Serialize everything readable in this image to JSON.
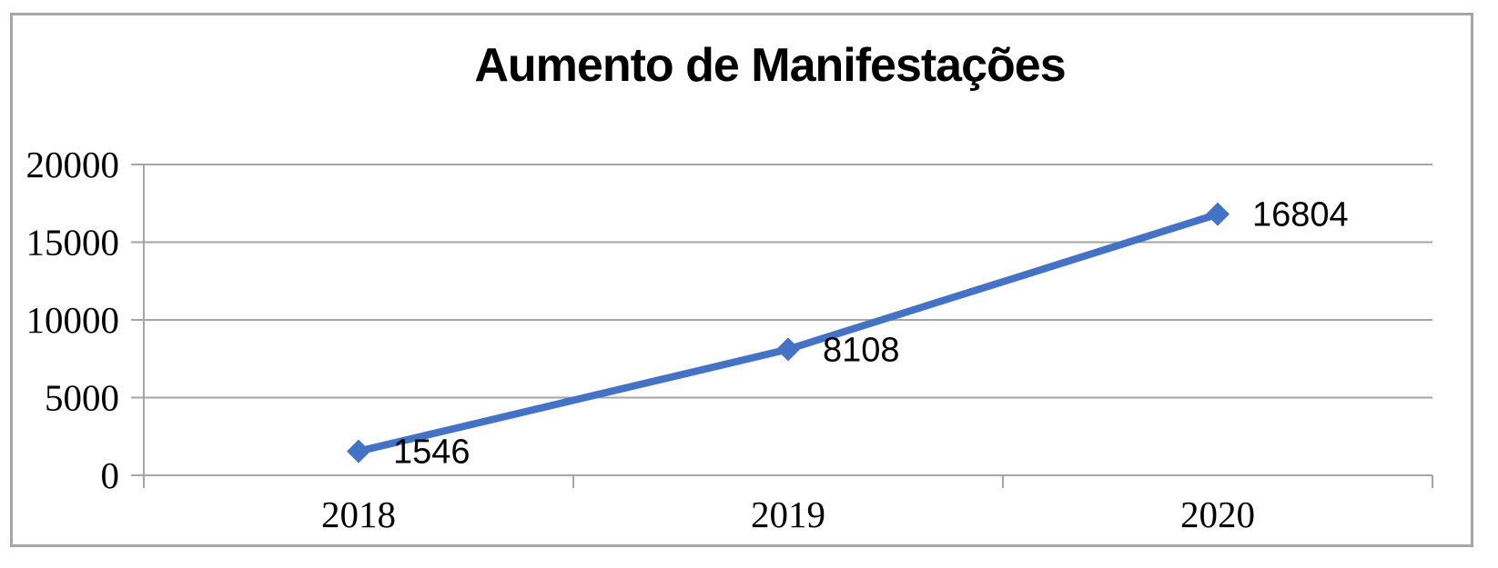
{
  "chart_data": {
    "type": "line",
    "title": "Aumento de Manifestações",
    "categories": [
      "2018",
      "2019",
      "2020"
    ],
    "series": [
      {
        "values": [
          1546,
          8108,
          16804
        ]
      }
    ],
    "data_labels": [
      "1546",
      "8108",
      "16804"
    ],
    "xlabel": "",
    "ylabel": "",
    "ylim": [
      0,
      20000
    ],
    "y_ticks": [
      0,
      5000,
      10000,
      15000,
      20000
    ],
    "y_tick_labels": [
      "0",
      "5000",
      "10000",
      "15000",
      "20000"
    ],
    "grid": "horizontal",
    "legend": "none",
    "marker": "diamond",
    "colors": {
      "line": "#4472C4",
      "marker": "#4472C4",
      "gridline": "#a6a6a6",
      "axis": "#a6a6a6",
      "border": "#a6a6a6",
      "text": "#000000",
      "background": "#ffffff"
    }
  }
}
